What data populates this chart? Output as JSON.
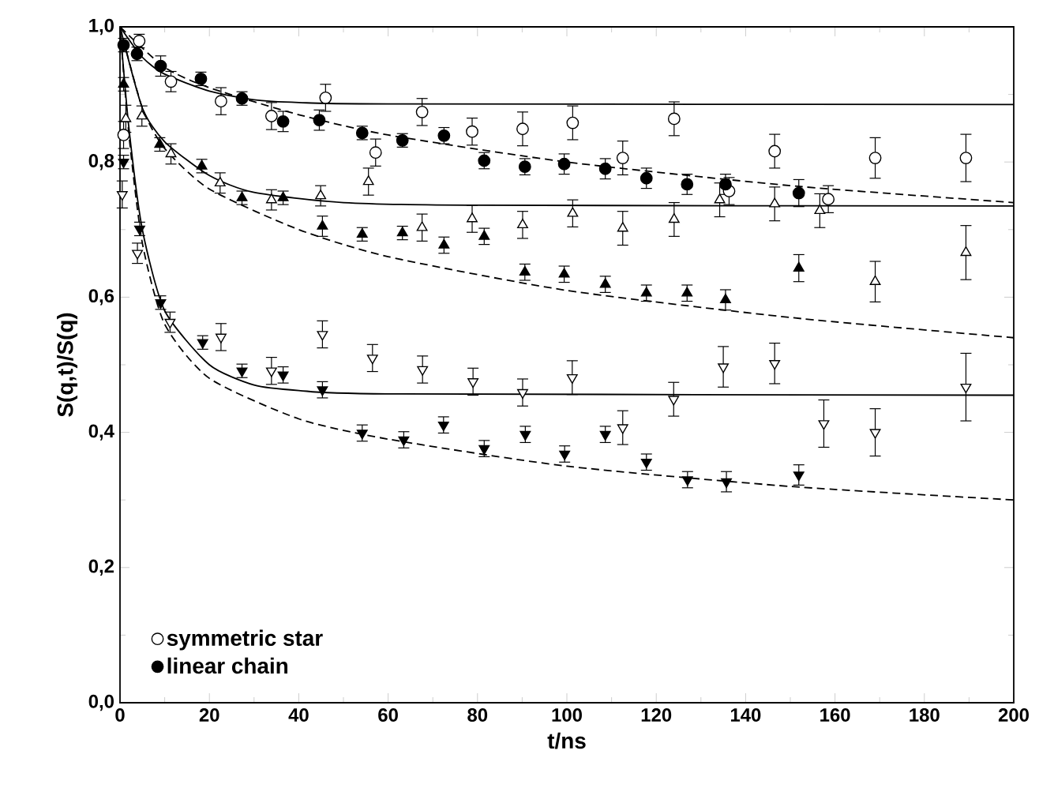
{
  "chart_data": {
    "type": "scatter",
    "xlabel": "t/ns",
    "ylabel": "S(q,t)/S(q)",
    "xlim": [
      0,
      200
    ],
    "xticks": [
      0,
      20,
      40,
      60,
      80,
      100,
      120,
      140,
      160,
      180,
      200
    ],
    "ylim": [
      0,
      1
    ],
    "yticks": [
      {
        "value": 0,
        "label": "0,0"
      },
      {
        "value": 0.2,
        "label": "0,2"
      },
      {
        "value": 0.4,
        "label": "0,4"
      },
      {
        "value": 0.6,
        "label": "0,6"
      },
      {
        "value": 0.8,
        "label": "0,8"
      },
      {
        "value": 1,
        "label": "1,0"
      }
    ],
    "grid": false,
    "legend": "bottom left",
    "series": [
      {
        "name": "symmetric star",
        "marker": "circle",
        "color": "#ffffff",
        "x": [
          0.8,
          4.3,
          11.4,
          22.6,
          33.9,
          46.0,
          57.2,
          67.6,
          78.8,
          90.1,
          101.3,
          112.5,
          124.0,
          136.3,
          146.5,
          158.5,
          169.0,
          189.3
        ],
        "values": [
          0.84,
          0.979,
          0.919,
          0.89,
          0.868,
          0.895,
          0.814,
          0.874,
          0.845,
          0.849,
          0.858,
          0.806,
          0.864,
          0.757,
          0.816,
          0.745,
          0.806,
          0.806
        ],
        "errors": [
          0.02,
          0.01,
          0.015,
          0.02,
          0.02,
          0.02,
          0.02,
          0.02,
          0.02,
          0.025,
          0.025,
          0.025,
          0.025,
          0.02,
          0.025,
          0.02,
          0.03,
          0.035
        ]
      },
      {
        "name": "linear chain",
        "marker": "circle",
        "color": "#000000",
        "x": [
          0.8,
          3.8,
          9.1,
          18.1,
          27.3,
          36.5,
          44.6,
          54.2,
          63.2,
          72.5,
          81.5,
          90.6,
          99.4,
          108.6,
          117.8,
          126.9,
          135.5,
          151.9
        ],
        "values": [
          0.973,
          0.96,
          0.942,
          0.923,
          0.894,
          0.86,
          0.862,
          0.843,
          0.832,
          0.839,
          0.802,
          0.793,
          0.797,
          0.79,
          0.776,
          0.767,
          0.767,
          0.754
        ],
        "errors": [
          0.01,
          0.01,
          0.015,
          0.01,
          0.01,
          0.015,
          0.015,
          0.01,
          0.01,
          0.012,
          0.012,
          0.012,
          0.015,
          0.015,
          0.015,
          0.015,
          0.015,
          0.02
        ]
      },
      {
        "marker": "triangle",
        "color": "#ffffff",
        "x": [
          1.3,
          4.9,
          11.4,
          22.4,
          33.9,
          44.9,
          55.6,
          67.6,
          78.8,
          90.1,
          101.3,
          112.5,
          124.0,
          134.2,
          146.5,
          156.6,
          169.0,
          189.3
        ],
        "values": [
          0.864,
          0.868,
          0.812,
          0.769,
          0.744,
          0.75,
          0.771,
          0.703,
          0.716,
          0.707,
          0.724,
          0.702,
          0.715,
          0.744,
          0.738,
          0.728,
          0.623,
          0.666
        ],
        "errors": [
          0.02,
          0.015,
          0.015,
          0.015,
          0.015,
          0.015,
          0.02,
          0.02,
          0.02,
          0.02,
          0.02,
          0.025,
          0.025,
          0.025,
          0.025,
          0.025,
          0.03,
          0.04
        ]
      },
      {
        "marker": "triangle",
        "color": "#000000",
        "x": [
          0.8,
          8.9,
          18.3,
          27.3,
          36.5,
          45.3,
          54.2,
          63.2,
          72.5,
          81.5,
          90.6,
          99.4,
          108.6,
          117.8,
          126.9,
          135.5,
          151.9
        ],
        "values": [
          0.915,
          0.826,
          0.794,
          0.747,
          0.747,
          0.705,
          0.693,
          0.695,
          0.677,
          0.69,
          0.637,
          0.634,
          0.619,
          0.606,
          0.606,
          0.596,
          0.643
        ],
        "errors": [
          0.01,
          0.01,
          0.01,
          0.01,
          0.01,
          0.015,
          0.01,
          0.01,
          0.012,
          0.012,
          0.012,
          0.012,
          0.012,
          0.012,
          0.012,
          0.015,
          0.02
        ]
      },
      {
        "marker": "triangle down",
        "color": "#ffffff",
        "x": [
          0.5,
          3.9,
          11.2,
          22.6,
          33.9,
          45.3,
          56.5,
          67.7,
          79.0,
          90.1,
          101.2,
          112.5,
          123.9,
          135.0,
          146.5,
          157.5,
          169.0,
          189.3
        ],
        "values": [
          0.752,
          0.665,
          0.563,
          0.541,
          0.491,
          0.545,
          0.51,
          0.493,
          0.475,
          0.459,
          0.481,
          0.407,
          0.449,
          0.497,
          0.502,
          0.413,
          0.4,
          0.467
        ],
        "errors": [
          0.02,
          0.015,
          0.015,
          0.02,
          0.02,
          0.02,
          0.02,
          0.02,
          0.02,
          0.02,
          0.025,
          0.025,
          0.025,
          0.03,
          0.03,
          0.035,
          0.035,
          0.05
        ]
      },
      {
        "marker": "triangle down",
        "color": "#000000",
        "x": [
          0.8,
          4.4,
          9.1,
          18.5,
          27.3,
          36.5,
          45.3,
          54.2,
          63.5,
          72.4,
          81.5,
          90.7,
          99.5,
          108.6,
          117.8,
          127.0,
          135.7,
          151.9
        ],
        "values": [
          0.8,
          0.701,
          0.592,
          0.533,
          0.491,
          0.485,
          0.463,
          0.399,
          0.389,
          0.411,
          0.376,
          0.397,
          0.368,
          0.397,
          0.356,
          0.33,
          0.327,
          0.337
        ],
        "errors": [
          0.01,
          0.01,
          0.01,
          0.01,
          0.01,
          0.012,
          0.012,
          0.012,
          0.012,
          0.012,
          0.012,
          0.012,
          0.012,
          0.012,
          0.012,
          0.012,
          0.015,
          0.015
        ]
      },
      {
        "type": "line",
        "line_style": "solid",
        "color": "#000000",
        "x": [
          0,
          5,
          10,
          20,
          30,
          40,
          60,
          200
        ],
        "values": [
          1.0,
          0.955,
          0.93,
          0.905,
          0.892,
          0.888,
          0.886,
          0.885
        ]
      },
      {
        "type": "line",
        "line_style": "dashed",
        "color": "#000000",
        "x": [
          0,
          10,
          20,
          40,
          60,
          100,
          150,
          200
        ],
        "values": [
          1.0,
          0.94,
          0.91,
          0.87,
          0.84,
          0.8,
          0.765,
          0.74
        ]
      },
      {
        "type": "line",
        "line_style": "solid",
        "color": "#000000",
        "x": [
          0,
          5,
          10,
          20,
          30,
          50,
          80,
          200
        ],
        "values": [
          1.0,
          0.88,
          0.83,
          0.78,
          0.755,
          0.74,
          0.736,
          0.735
        ]
      },
      {
        "type": "line",
        "line_style": "dashed",
        "color": "#000000",
        "x": [
          0,
          5,
          10,
          20,
          40,
          60,
          100,
          150,
          200
        ],
        "values": [
          1.0,
          0.88,
          0.82,
          0.76,
          0.7,
          0.66,
          0.61,
          0.57,
          0.54
        ]
      },
      {
        "type": "line",
        "line_style": "solid",
        "color": "#000000",
        "x": [
          0,
          2,
          5,
          10,
          20,
          30,
          40,
          60,
          200
        ],
        "values": [
          1.0,
          0.85,
          0.7,
          0.58,
          0.5,
          0.47,
          0.462,
          0.457,
          0.455
        ]
      },
      {
        "type": "line",
        "line_style": "dashed",
        "color": "#000000",
        "x": [
          0,
          2,
          5,
          10,
          20,
          40,
          60,
          100,
          150,
          200
        ],
        "values": [
          1.0,
          0.84,
          0.68,
          0.56,
          0.48,
          0.42,
          0.39,
          0.35,
          0.32,
          0.3
        ]
      }
    ]
  }
}
